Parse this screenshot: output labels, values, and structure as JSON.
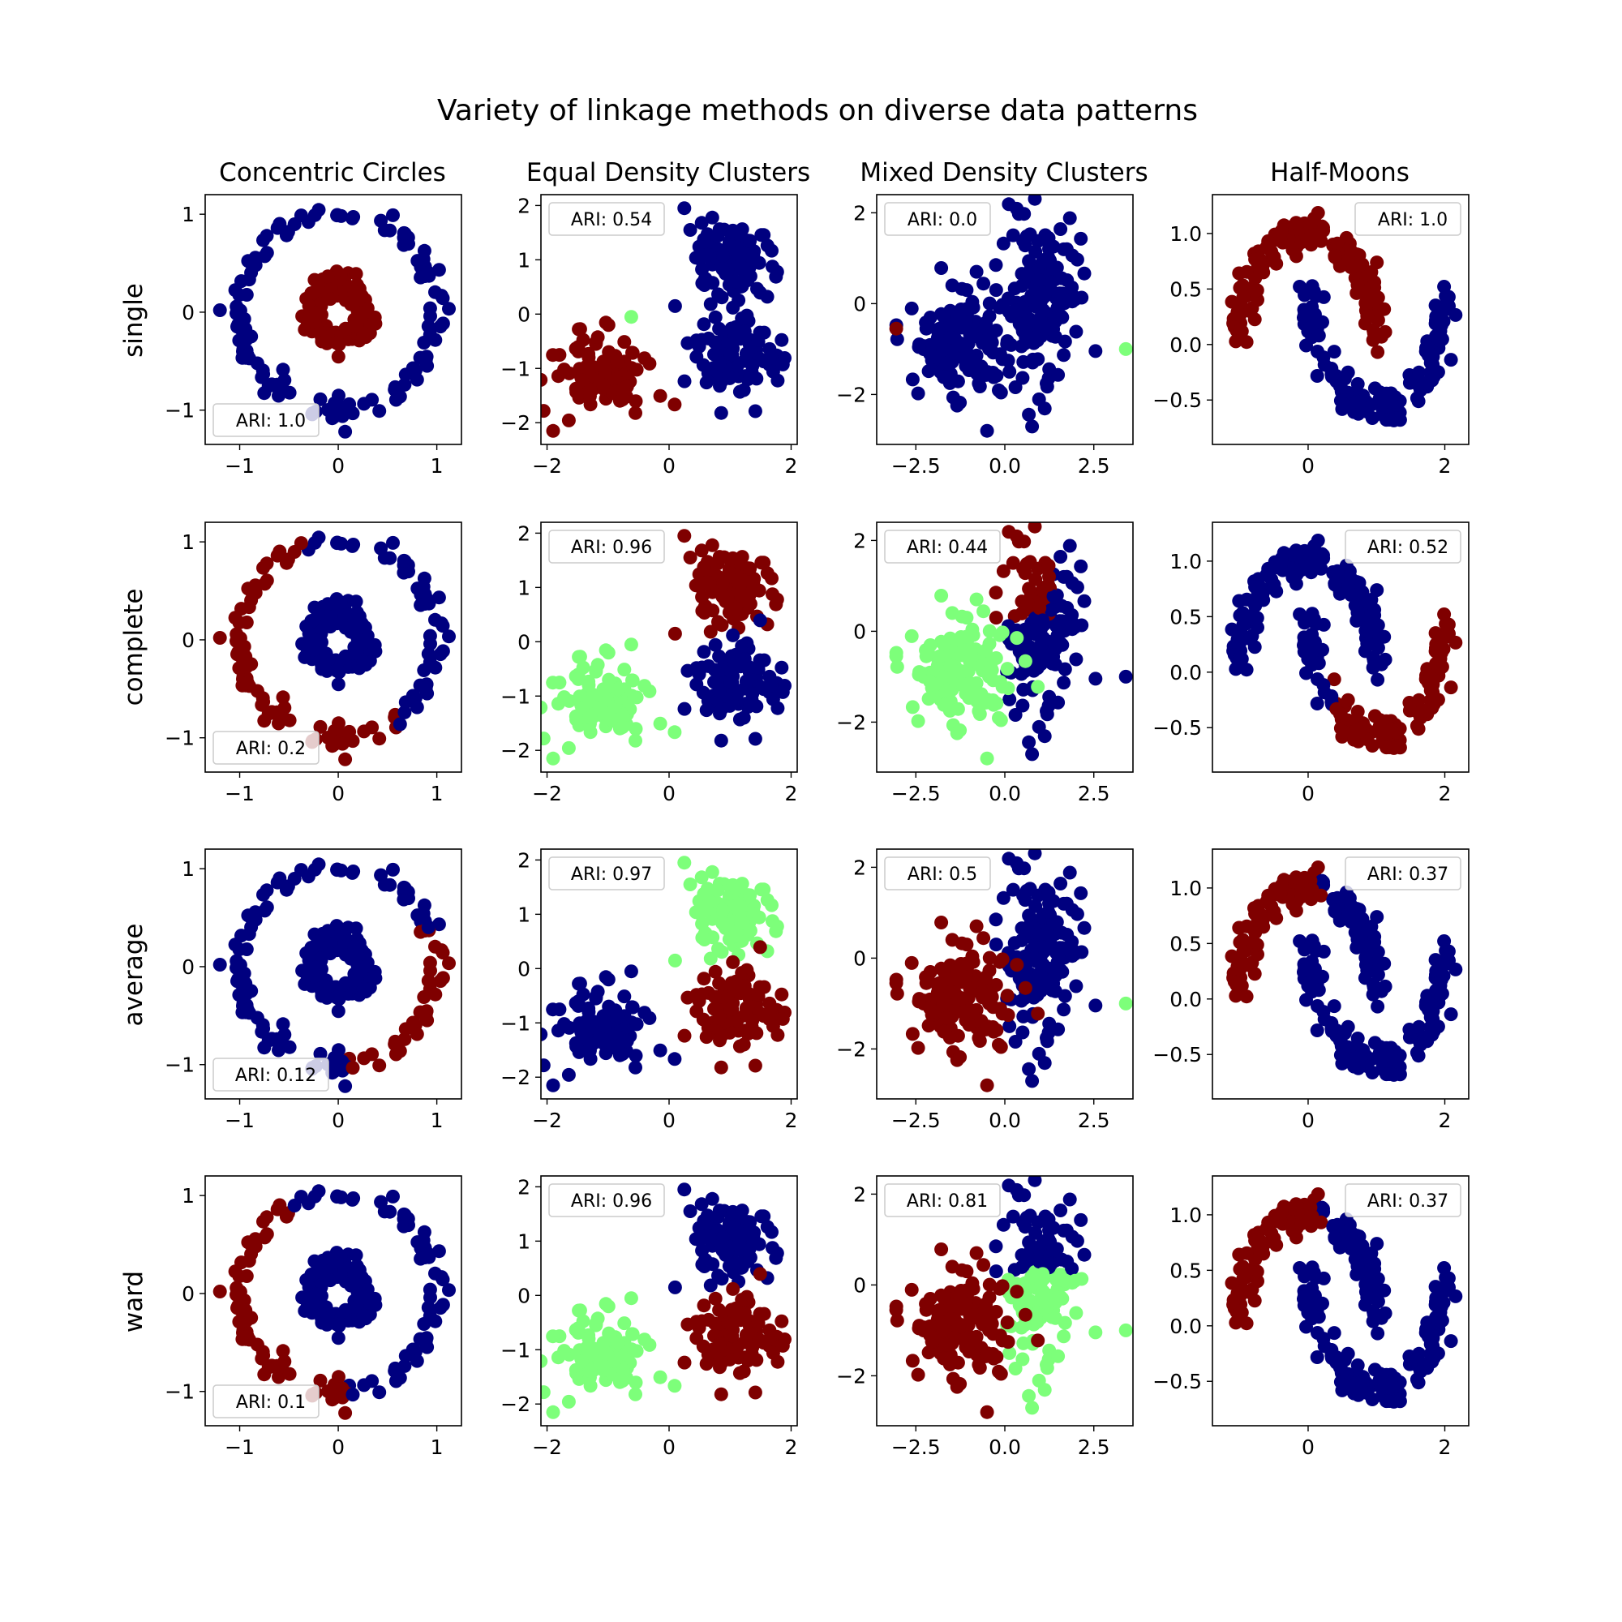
{
  "title": "Variety of linkage methods on diverse data patterns",
  "colors": {
    "navy": "#00007f",
    "maroon": "#7f0000",
    "light_green": "#7dff7a"
  },
  "columns": [
    "Concentric Circles",
    "Equal Density Clusters",
    "Mixed Density Clusters",
    "Half-Moons"
  ],
  "rows": [
    "single",
    "complete",
    "average",
    "ward"
  ],
  "chart_data": [
    {
      "type": "scatter",
      "row": "single",
      "column": "Concentric Circles",
      "legend_text": "ARI: 1.0",
      "legend_loc": "lower-left",
      "xlim": [
        -1.35,
        1.25
      ],
      "ylim": [
        -1.35,
        1.2
      ],
      "xticks": [
        -1,
        0,
        1
      ],
      "yticks": [
        -1,
        0,
        1
      ],
      "xtick_labels": [
        "−1",
        "0",
        "1"
      ],
      "ytick_labels": [
        "−1",
        "0",
        "1"
      ],
      "pattern": "circles",
      "assignment": "c-single"
    },
    {
      "type": "scatter",
      "row": "single",
      "column": "Equal Density Clusters",
      "legend_text": "ARI: 0.54",
      "legend_loc": "upper-left",
      "xlim": [
        -2.1,
        2.1
      ],
      "ylim": [
        -2.4,
        2.2
      ],
      "xticks": [
        -2,
        0,
        2
      ],
      "yticks": [
        -2,
        -1,
        0,
        1,
        2
      ],
      "xtick_labels": [
        "−2",
        "0",
        "2"
      ],
      "ytick_labels": [
        "−2",
        "−1",
        "0",
        "1",
        "2"
      ],
      "pattern": "equal",
      "assignment": "e-single"
    },
    {
      "type": "scatter",
      "row": "single",
      "column": "Mixed Density Clusters",
      "legend_text": "ARI: 0.0",
      "legend_loc": "upper-left",
      "xlim": [
        -3.6,
        3.6
      ],
      "ylim": [
        -3.1,
        2.4
      ],
      "xticks": [
        -2.5,
        0,
        2.5
      ],
      "yticks": [
        -2,
        0,
        2
      ],
      "xtick_labels": [
        "−2.5",
        "0.0",
        "2.5"
      ],
      "ytick_labels": [
        "−2",
        "0",
        "2"
      ],
      "pattern": "mixed",
      "assignment": "m-single"
    },
    {
      "type": "scatter",
      "row": "single",
      "column": "Half-Moons",
      "legend_text": "ARI: 1.0",
      "legend_loc": "upper-right",
      "xlim": [
        -1.4,
        2.35
      ],
      "ylim": [
        -0.9,
        1.35
      ],
      "xticks": [
        0,
        2
      ],
      "yticks": [
        -0.5,
        0,
        0.5,
        1
      ],
      "xtick_labels": [
        "0",
        "2"
      ],
      "ytick_labels": [
        "−0.5",
        "0.0",
        "0.5",
        "1.0"
      ],
      "pattern": "moons",
      "assignment": "h-single"
    },
    {
      "type": "scatter",
      "row": "complete",
      "column": "Concentric Circles",
      "legend_text": "ARI: 0.2",
      "legend_loc": "lower-left",
      "xlim": [
        -1.35,
        1.25
      ],
      "ylim": [
        -1.35,
        1.2
      ],
      "xticks": [
        -1,
        0,
        1
      ],
      "yticks": [
        -1,
        0,
        1
      ],
      "xtick_labels": [
        "−1",
        "0",
        "1"
      ],
      "ytick_labels": [
        "−1",
        "0",
        "1"
      ],
      "pattern": "circles",
      "assignment": "c-complete"
    },
    {
      "type": "scatter",
      "row": "complete",
      "column": "Equal Density Clusters",
      "legend_text": "ARI: 0.96",
      "legend_loc": "upper-left",
      "xlim": [
        -2.1,
        2.1
      ],
      "ylim": [
        -2.4,
        2.2
      ],
      "xticks": [
        -2,
        0,
        2
      ],
      "yticks": [
        -2,
        -1,
        0,
        1,
        2
      ],
      "xtick_labels": [
        "−2",
        "0",
        "2"
      ],
      "ytick_labels": [
        "−2",
        "−1",
        "0",
        "1",
        "2"
      ],
      "pattern": "equal",
      "assignment": "e-complete"
    },
    {
      "type": "scatter",
      "row": "complete",
      "column": "Mixed Density Clusters",
      "legend_text": "ARI: 0.44",
      "legend_loc": "upper-left",
      "xlim": [
        -3.6,
        3.6
      ],
      "ylim": [
        -3.1,
        2.4
      ],
      "xticks": [
        -2.5,
        0,
        2.5
      ],
      "yticks": [
        -2,
        0,
        2
      ],
      "xtick_labels": [
        "−2.5",
        "0.0",
        "2.5"
      ],
      "ytick_labels": [
        "−2",
        "0",
        "2"
      ],
      "pattern": "mixed",
      "assignment": "m-complete"
    },
    {
      "type": "scatter",
      "row": "complete",
      "column": "Half-Moons",
      "legend_text": "ARI: 0.52",
      "legend_loc": "upper-right",
      "xlim": [
        -1.4,
        2.35
      ],
      "ylim": [
        -0.9,
        1.35
      ],
      "xticks": [
        0,
        2
      ],
      "yticks": [
        -0.5,
        0,
        0.5,
        1
      ],
      "xtick_labels": [
        "0",
        "2"
      ],
      "ytick_labels": [
        "−0.5",
        "0.0",
        "0.5",
        "1.0"
      ],
      "pattern": "moons",
      "assignment": "h-complete"
    },
    {
      "type": "scatter",
      "row": "average",
      "column": "Concentric Circles",
      "legend_text": "ARI: 0.12",
      "legend_loc": "lower-left",
      "xlim": [
        -1.35,
        1.25
      ],
      "ylim": [
        -1.35,
        1.2
      ],
      "xticks": [
        -1,
        0,
        1
      ],
      "yticks": [
        -1,
        0,
        1
      ],
      "xtick_labels": [
        "−1",
        "0",
        "1"
      ],
      "ytick_labels": [
        "−1",
        "0",
        "1"
      ],
      "pattern": "circles",
      "assignment": "c-average"
    },
    {
      "type": "scatter",
      "row": "average",
      "column": "Equal Density Clusters",
      "legend_text": "ARI: 0.97",
      "legend_loc": "upper-left",
      "xlim": [
        -2.1,
        2.1
      ],
      "ylim": [
        -2.4,
        2.2
      ],
      "xticks": [
        -2,
        0,
        2
      ],
      "yticks": [
        -2,
        -1,
        0,
        1,
        2
      ],
      "xtick_labels": [
        "−2",
        "0",
        "2"
      ],
      "ytick_labels": [
        "−2",
        "−1",
        "0",
        "1",
        "2"
      ],
      "pattern": "equal",
      "assignment": "e-average"
    },
    {
      "type": "scatter",
      "row": "average",
      "column": "Mixed Density Clusters",
      "legend_text": "ARI: 0.5",
      "legend_loc": "upper-left",
      "xlim": [
        -3.6,
        3.6
      ],
      "ylim": [
        -3.1,
        2.4
      ],
      "xticks": [
        -2.5,
        0,
        2.5
      ],
      "yticks": [
        -2,
        0,
        2
      ],
      "xtick_labels": [
        "−2.5",
        "0.0",
        "2.5"
      ],
      "ytick_labels": [
        "−2",
        "0",
        "2"
      ],
      "pattern": "mixed",
      "assignment": "m-average"
    },
    {
      "type": "scatter",
      "row": "average",
      "column": "Half-Moons",
      "legend_text": "ARI: 0.37",
      "legend_loc": "upper-right",
      "xlim": [
        -1.4,
        2.35
      ],
      "ylim": [
        -0.9,
        1.35
      ],
      "xticks": [
        0,
        2
      ],
      "yticks": [
        -0.5,
        0,
        0.5,
        1
      ],
      "xtick_labels": [
        "0",
        "2"
      ],
      "ytick_labels": [
        "−0.5",
        "0.0",
        "0.5",
        "1.0"
      ],
      "pattern": "moons",
      "assignment": "h-average"
    },
    {
      "type": "scatter",
      "row": "ward",
      "column": "Concentric Circles",
      "legend_text": "ARI: 0.1",
      "legend_loc": "lower-left",
      "xlim": [
        -1.35,
        1.25
      ],
      "ylim": [
        -1.35,
        1.2
      ],
      "xticks": [
        -1,
        0,
        1
      ],
      "yticks": [
        -1,
        0,
        1
      ],
      "xtick_labels": [
        "−1",
        "0",
        "1"
      ],
      "ytick_labels": [
        "−1",
        "0",
        "1"
      ],
      "pattern": "circles",
      "assignment": "c-ward"
    },
    {
      "type": "scatter",
      "row": "ward",
      "column": "Equal Density Clusters",
      "legend_text": "ARI: 0.96",
      "legend_loc": "upper-left",
      "xlim": [
        -2.1,
        2.1
      ],
      "ylim": [
        -2.4,
        2.2
      ],
      "xticks": [
        -2,
        0,
        2
      ],
      "yticks": [
        -2,
        -1,
        0,
        1,
        2
      ],
      "xtick_labels": [
        "−2",
        "0",
        "2"
      ],
      "ytick_labels": [
        "−2",
        "−1",
        "0",
        "1",
        "2"
      ],
      "pattern": "equal",
      "assignment": "e-ward"
    },
    {
      "type": "scatter",
      "row": "ward",
      "column": "Mixed Density Clusters",
      "legend_text": "ARI: 0.81",
      "legend_loc": "upper-left",
      "xlim": [
        -3.6,
        3.6
      ],
      "ylim": [
        -3.1,
        2.4
      ],
      "xticks": [
        -2.5,
        0,
        2.5
      ],
      "yticks": [
        -2,
        0,
        2
      ],
      "xtick_labels": [
        "−2.5",
        "0.0",
        "2.5"
      ],
      "ytick_labels": [
        "−2",
        "0",
        "2"
      ],
      "pattern": "mixed",
      "assignment": "m-ward"
    },
    {
      "type": "scatter",
      "row": "ward",
      "column": "Half-Moons",
      "legend_text": "ARI: 0.37",
      "legend_loc": "upper-right",
      "xlim": [
        -1.4,
        2.35
      ],
      "ylim": [
        -0.9,
        1.35
      ],
      "xticks": [
        0,
        2
      ],
      "yticks": [
        -0.5,
        0,
        0.5,
        1
      ],
      "xtick_labels": [
        "0",
        "2"
      ],
      "ytick_labels": [
        "−0.5",
        "0.0",
        "0.5",
        "1.0"
      ],
      "pattern": "moons",
      "assignment": "h-ward"
    }
  ]
}
